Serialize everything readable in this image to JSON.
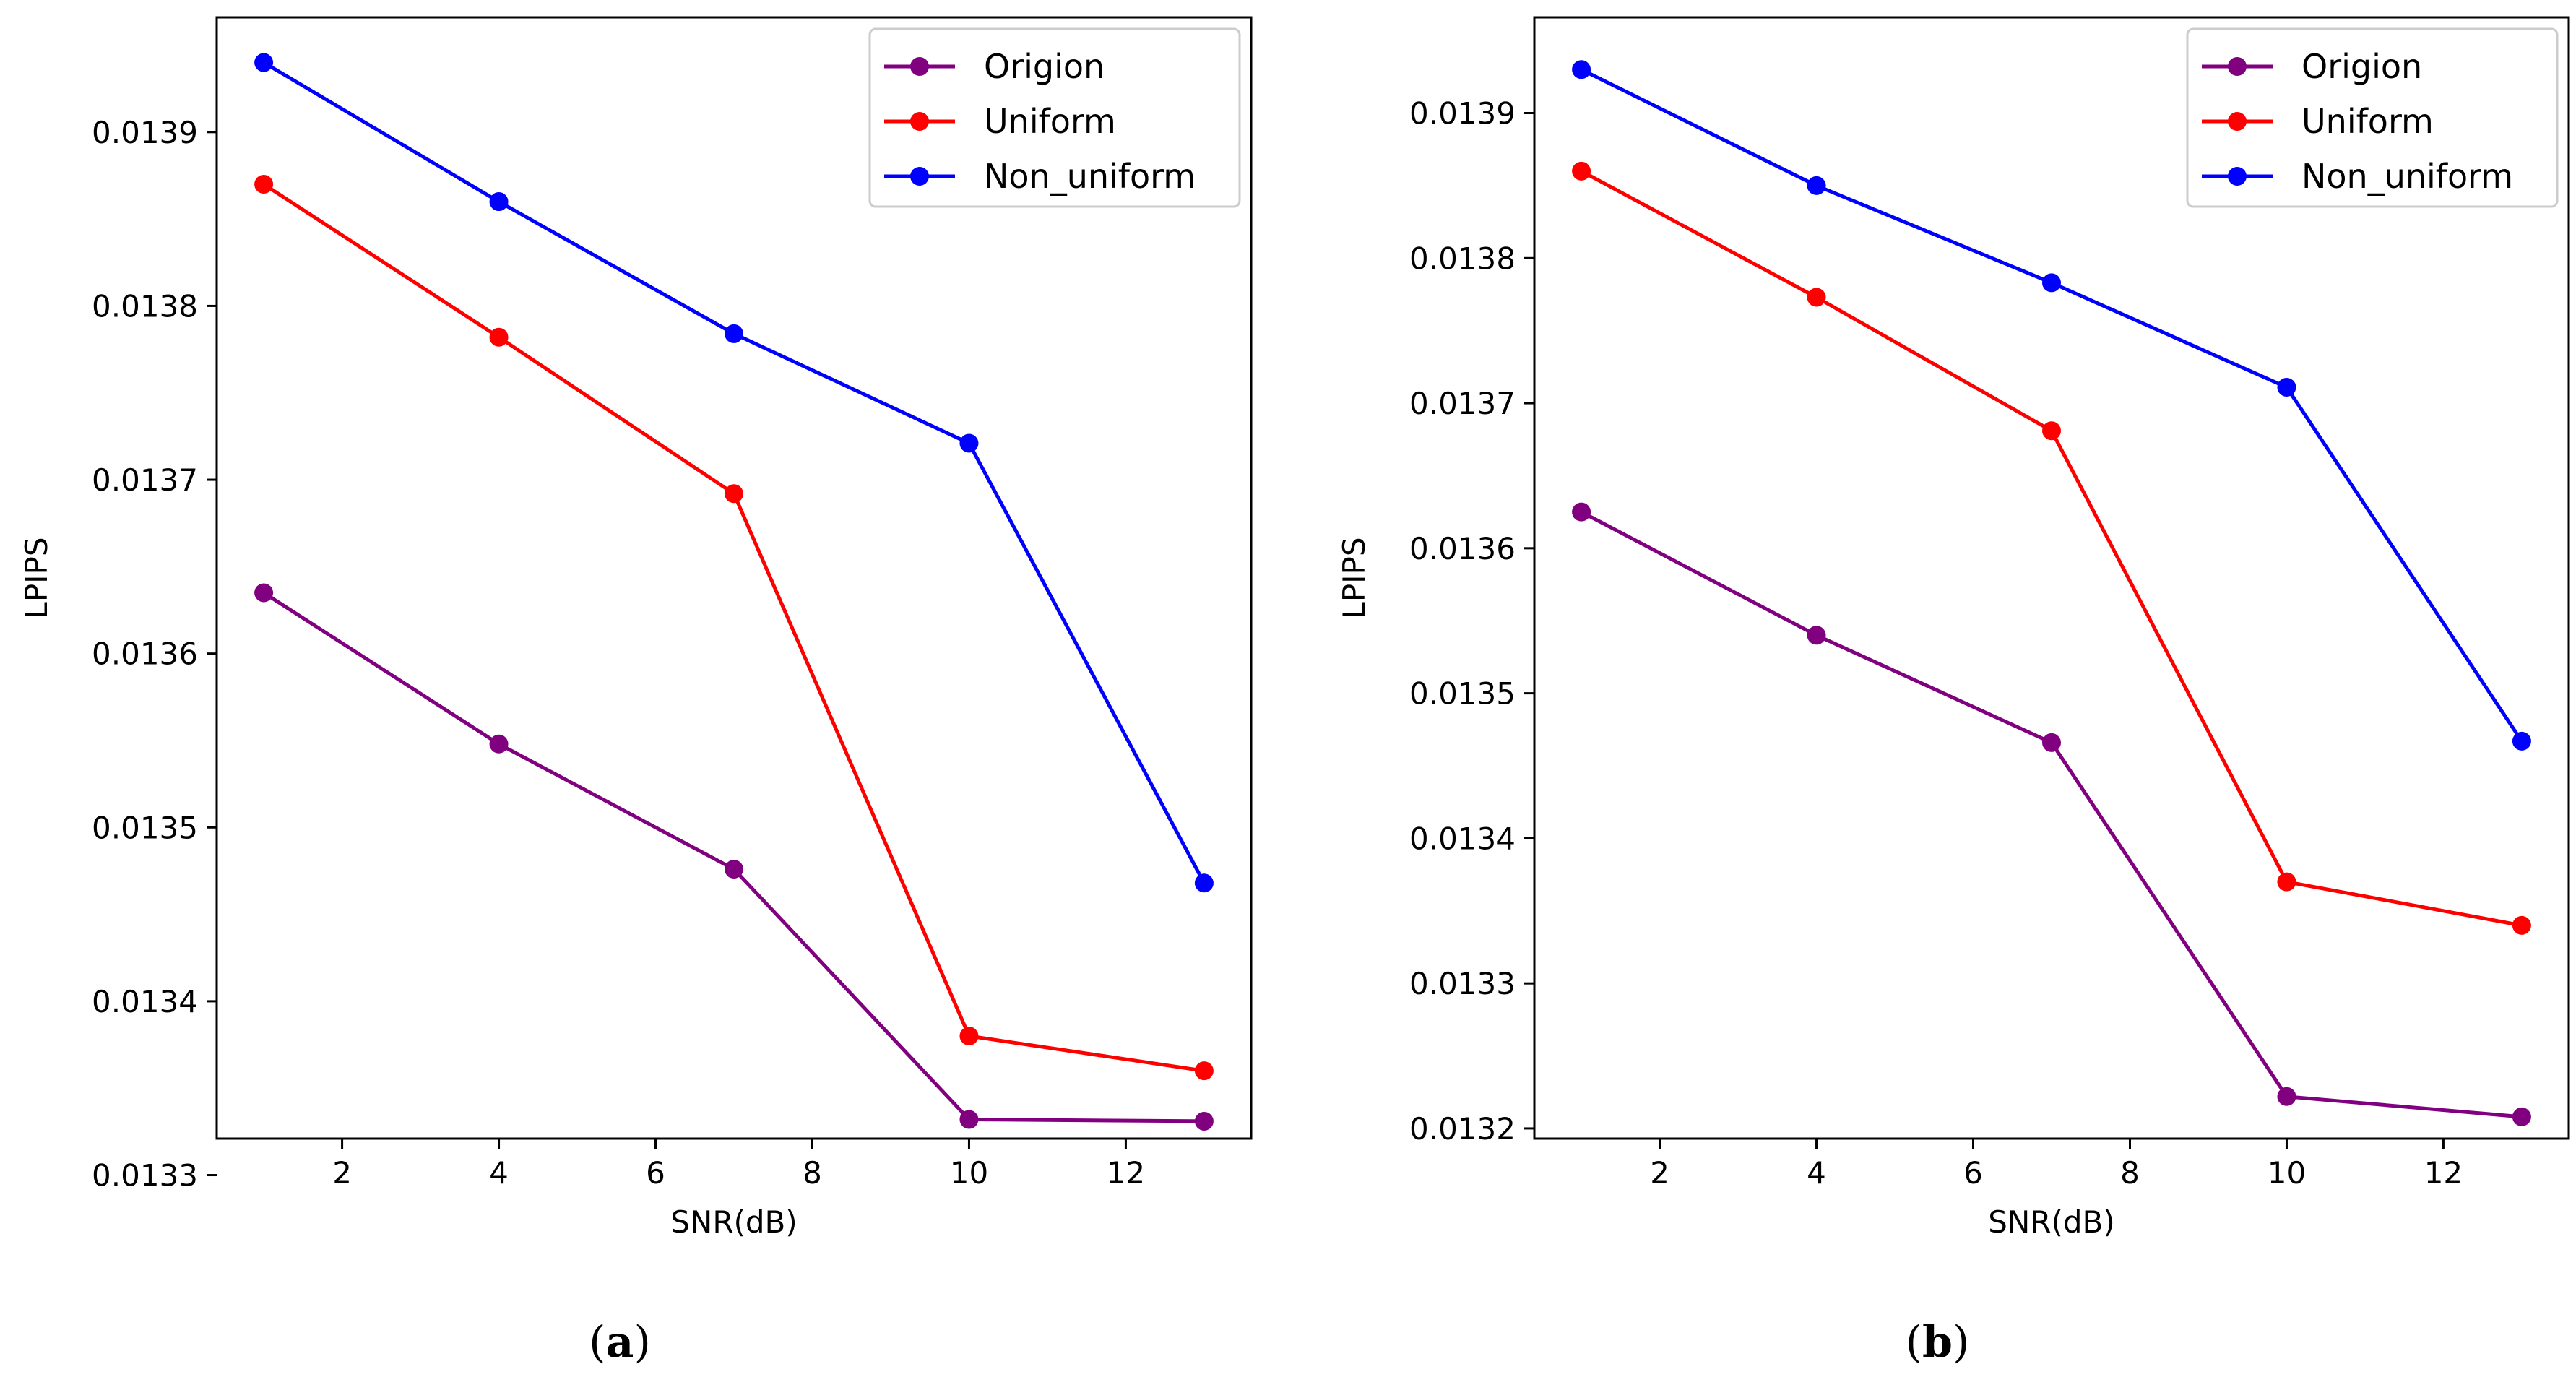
{
  "chart_data": [
    {
      "type": "line",
      "caption": "a",
      "xlabel": "SNR(dB)",
      "ylabel": "LPIPS",
      "x": [
        1,
        4,
        7,
        10,
        13
      ],
      "xlim": [
        0.4,
        13.6
      ],
      "ylim": [
        0.013321,
        0.013966
      ],
      "xticks": [
        2,
        4,
        6,
        8,
        10,
        12
      ],
      "yticks": [
        0.0133,
        0.0134,
        0.0135,
        0.0136,
        0.0137,
        0.0138,
        0.0139
      ],
      "series": [
        {
          "name": "Origion",
          "color": "#800080",
          "values": [
            0.013635,
            0.013548,
            0.013476,
            0.013332,
            0.013331
          ]
        },
        {
          "name": "Uniform",
          "color": "#ff0000",
          "values": [
            0.01387,
            0.013782,
            0.013692,
            0.01338,
            0.01336
          ]
        },
        {
          "name": "Non_uniform",
          "color": "#0000ff",
          "values": [
            0.01394,
            0.01386,
            0.013784,
            0.013721,
            0.013468
          ]
        }
      ],
      "legend": "top-right",
      "grid": false
    },
    {
      "type": "line",
      "caption": "b",
      "xlabel": "SNR(dB)",
      "ylabel": "LPIPS",
      "x": [
        1,
        4,
        7,
        10,
        13
      ],
      "xlim": [
        0.4,
        13.6
      ],
      "ylim": [
        0.013193,
        0.013966
      ],
      "xticks": [
        2,
        4,
        6,
        8,
        10,
        12
      ],
      "yticks": [
        0.0132,
        0.0133,
        0.0134,
        0.0135,
        0.0136,
        0.0137,
        0.0138,
        0.0139
      ],
      "series": [
        {
          "name": "Origion",
          "color": "#800080",
          "values": [
            0.013625,
            0.01354,
            0.013466,
            0.013222,
            0.013208
          ]
        },
        {
          "name": "Uniform",
          "color": "#ff0000",
          "values": [
            0.01386,
            0.013773,
            0.013681,
            0.01337,
            0.01334
          ]
        },
        {
          "name": "Non_uniform",
          "color": "#0000ff",
          "values": [
            0.01393,
            0.01385,
            0.013783,
            0.013711,
            0.013467
          ]
        }
      ],
      "legend": "top-right",
      "grid": false
    }
  ]
}
